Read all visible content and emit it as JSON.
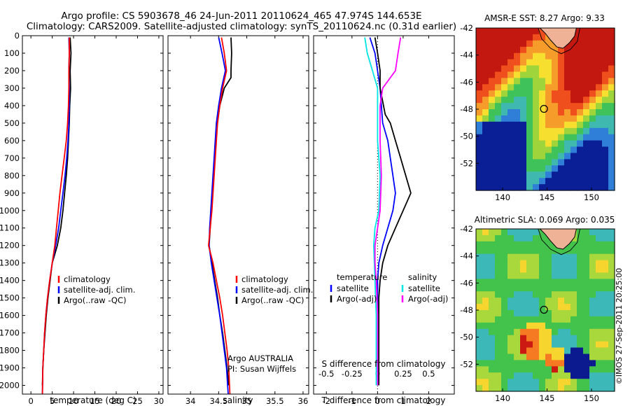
{
  "figure": {
    "title_line1": "Argo profile: CS 5903678_46 24-Jun-2011 20110624_465 47.974S 144.653E",
    "title_line2": "Climatology: CARS2009. Satellite-adjusted climatology: synTS_20110624.nc (0.31d earlier)",
    "credit": "©IMOS 27-Sep-2011 20:25:00"
  },
  "chart_data": [
    {
      "id": "temperature",
      "type": "line",
      "xlabel": "temperature (deg C)",
      "xlim": [
        -2,
        31
      ],
      "xticks": [
        0,
        5,
        10,
        15,
        20,
        25,
        30
      ],
      "ylim": [
        0,
        2050
      ],
      "yticks": [
        0,
        100,
        200,
        300,
        400,
        500,
        600,
        700,
        800,
        900,
        1000,
        1100,
        1200,
        1300,
        1400,
        1500,
        1600,
        1700,
        1800,
        1900,
        2000
      ],
      "legend": [
        "climatology",
        "satellite-adj. clim.",
        "Argo(..raw -QC)"
      ],
      "series": [
        {
          "name": "Argo(..raw -QC)",
          "color": "#000000",
          "points": [
            [
              9.2,
              10
            ],
            [
              9.4,
              100
            ],
            [
              9.2,
              200
            ],
            [
              9.3,
              300
            ],
            [
              9.1,
              400
            ],
            [
              9.0,
              500
            ],
            [
              8.8,
              600
            ],
            [
              8.6,
              700
            ],
            [
              8.3,
              800
            ],
            [
              7.9,
              900
            ],
            [
              7.5,
              1000
            ],
            [
              7.0,
              1100
            ],
            [
              6.2,
              1200
            ],
            [
              5.0,
              1300
            ],
            [
              4.5,
              1400
            ],
            [
              4.0,
              1500
            ],
            [
              3.6,
              1600
            ],
            [
              3.3,
              1700
            ],
            [
              3.0,
              1800
            ],
            [
              2.8,
              1900
            ],
            [
              2.7,
              2000
            ]
          ]
        },
        {
          "name": "satellite-adj. clim.",
          "color": "#0000ff",
          "points": [
            [
              8.9,
              10
            ],
            [
              9.0,
              100
            ],
            [
              8.9,
              200
            ],
            [
              9.0,
              300
            ],
            [
              9.0,
              400
            ],
            [
              8.9,
              500
            ],
            [
              8.7,
              600
            ],
            [
              8.4,
              700
            ],
            [
              8.0,
              800
            ],
            [
              7.5,
              900
            ],
            [
              7.0,
              1000
            ],
            [
              6.5,
              1100
            ],
            [
              5.8,
              1200
            ],
            [
              5.0,
              1300
            ],
            [
              4.4,
              1400
            ],
            [
              3.9,
              1500
            ],
            [
              3.5,
              1600
            ],
            [
              3.2,
              1700
            ],
            [
              3.0,
              1800
            ],
            [
              2.8,
              1900
            ],
            [
              2.7,
              2050
            ]
          ]
        },
        {
          "name": "climatology",
          "color": "#ff0000",
          "points": [
            [
              9.0,
              10
            ],
            [
              9.0,
              100
            ],
            [
              8.9,
              200
            ],
            [
              8.9,
              300
            ],
            [
              8.8,
              400
            ],
            [
              8.6,
              500
            ],
            [
              8.3,
              600
            ],
            [
              7.8,
              700
            ],
            [
              7.3,
              800
            ],
            [
              6.8,
              900
            ],
            [
              6.4,
              1000
            ],
            [
              6.0,
              1100
            ],
            [
              5.6,
              1200
            ],
            [
              5.0,
              1300
            ],
            [
              4.4,
              1400
            ],
            [
              3.9,
              1500
            ],
            [
              3.5,
              1600
            ],
            [
              3.2,
              1700
            ],
            [
              3.0,
              1800
            ],
            [
              2.8,
              1900
            ],
            [
              2.7,
              2050
            ]
          ]
        }
      ]
    },
    {
      "id": "salinity",
      "type": "line",
      "xlabel": "salinity",
      "xlim": [
        33.6,
        36.1
      ],
      "xticks": [
        34,
        34.5,
        35,
        35.5,
        36
      ],
      "ylim": [
        0,
        2050
      ],
      "legend": [
        "climatology",
        "satellite-adj. clim.",
        "Argo(..raw -QC)"
      ],
      "annotation_line1": "Argo AUSTRALIA",
      "annotation_line2": "PI: Susan Wijffels",
      "series": [
        {
          "name": "Argo(..raw -QC)",
          "color": "#000000",
          "points": [
            [
              34.72,
              10
            ],
            [
              34.73,
              100
            ],
            [
              34.72,
              200
            ],
            [
              34.72,
              240
            ],
            [
              34.6,
              300
            ],
            [
              34.52,
              400
            ],
            [
              34.47,
              500
            ],
            [
              34.45,
              600
            ],
            [
              34.43,
              700
            ],
            [
              34.41,
              800
            ],
            [
              34.39,
              900
            ],
            [
              34.37,
              1000
            ],
            [
              34.35,
              1100
            ],
            [
              34.33,
              1200
            ],
            [
              34.38,
              1300
            ],
            [
              34.43,
              1400
            ],
            [
              34.48,
              1500
            ],
            [
              34.52,
              1600
            ],
            [
              34.57,
              1700
            ],
            [
              34.61,
              1800
            ],
            [
              34.65,
              1900
            ],
            [
              34.68,
              2000
            ]
          ]
        },
        {
          "name": "satellite-adj. clim.",
          "color": "#0000ff",
          "points": [
            [
              34.5,
              10
            ],
            [
              34.56,
              100
            ],
            [
              34.62,
              200
            ],
            [
              34.55,
              300
            ],
            [
              34.5,
              400
            ],
            [
              34.46,
              500
            ],
            [
              34.44,
              600
            ],
            [
              34.42,
              700
            ],
            [
              34.4,
              800
            ],
            [
              34.38,
              900
            ],
            [
              34.36,
              1000
            ],
            [
              34.34,
              1100
            ],
            [
              34.33,
              1200
            ],
            [
              34.37,
              1300
            ],
            [
              34.42,
              1400
            ],
            [
              34.47,
              1500
            ],
            [
              34.52,
              1600
            ],
            [
              34.56,
              1700
            ],
            [
              34.6,
              1800
            ],
            [
              34.64,
              1900
            ],
            [
              34.67,
              2050
            ]
          ]
        },
        {
          "name": "climatology",
          "color": "#ff0000",
          "points": [
            [
              34.55,
              10
            ],
            [
              34.6,
              100
            ],
            [
              34.64,
              200
            ],
            [
              34.57,
              300
            ],
            [
              34.52,
              400
            ],
            [
              34.48,
              500
            ],
            [
              34.46,
              600
            ],
            [
              34.44,
              700
            ],
            [
              34.42,
              800
            ],
            [
              34.4,
              900
            ],
            [
              34.38,
              1000
            ],
            [
              34.35,
              1100
            ],
            [
              34.32,
              1200
            ],
            [
              34.4,
              1300
            ],
            [
              34.46,
              1400
            ],
            [
              34.52,
              1500
            ],
            [
              34.57,
              1600
            ],
            [
              34.61,
              1700
            ],
            [
              34.65,
              1800
            ],
            [
              34.68,
              1900
            ],
            [
              34.7,
              2050
            ]
          ]
        }
      ]
    },
    {
      "id": "difference",
      "type": "line",
      "xlabel_bottom": "T difference from climatology",
      "xlabel_top": "S difference from climatology",
      "xlim": [
        -2.5,
        3.0
      ],
      "xticks": [
        -2,
        -1,
        0,
        1,
        2
      ],
      "xticks_top_labels": [
        "-0.5",
        "-0.25",
        "0",
        "0.25",
        "0.5"
      ],
      "xticks_top_positions": [
        -2,
        -1,
        0,
        1,
        2
      ],
      "ylim": [
        0,
        2050
      ],
      "legend_temperature": {
        "header": "temperature",
        "items": [
          "satellite",
          "Argo(-adj)"
        ]
      },
      "legend_salinity": {
        "header": "salinity",
        "items": [
          "satellite",
          "Argo(-adj)"
        ]
      },
      "series": [
        {
          "name": "temperature satellite",
          "color": "#0000ff",
          "points": [
            [
              -0.3,
              10
            ],
            [
              -0.1,
              100
            ],
            [
              0.0,
              200
            ],
            [
              0.1,
              300
            ],
            [
              0.15,
              400
            ],
            [
              0.2,
              500
            ],
            [
              0.4,
              600
            ],
            [
              0.5,
              700
            ],
            [
              0.6,
              800
            ],
            [
              0.7,
              900
            ],
            [
              0.6,
              1000
            ],
            [
              0.4,
              1100
            ],
            [
              0.2,
              1200
            ],
            [
              0.05,
              1300
            ],
            [
              0.0,
              1400
            ],
            [
              0.0,
              1500
            ],
            [
              0.0,
              1600
            ],
            [
              0.0,
              1700
            ],
            [
              0.0,
              1800
            ],
            [
              0.0,
              1900
            ],
            [
              0.0,
              2000
            ]
          ]
        },
        {
          "name": "temperature Argo(-adj)",
          "color": "#000000",
          "points": [
            [
              -0.1,
              10
            ],
            [
              0.0,
              100
            ],
            [
              0.1,
              200
            ],
            [
              0.1,
              300
            ],
            [
              0.3,
              450
            ],
            [
              0.5,
              500
            ],
            [
              0.7,
              600
            ],
            [
              0.9,
              700
            ],
            [
              1.1,
              800
            ],
            [
              1.3,
              900
            ],
            [
              1.0,
              1000
            ],
            [
              0.7,
              1100
            ],
            [
              0.4,
              1200
            ],
            [
              0.2,
              1300
            ],
            [
              0.1,
              1400
            ],
            [
              0.05,
              1500
            ],
            [
              0.05,
              1600
            ],
            [
              0.05,
              1700
            ],
            [
              0.05,
              1800
            ],
            [
              0.05,
              1900
            ],
            [
              0.05,
              2000
            ]
          ]
        },
        {
          "name": "salinity satellite",
          "color": "#00e5e5",
          "points": [
            [
              -0.5,
              10
            ],
            [
              -0.4,
              100
            ],
            [
              -0.2,
              200
            ],
            [
              0.0,
              300
            ],
            [
              0.0,
              400
            ],
            [
              0.0,
              600
            ],
            [
              0.1,
              800
            ],
            [
              0.05,
              1000
            ],
            [
              -0.1,
              1100
            ],
            [
              -0.15,
              1200
            ],
            [
              -0.1,
              1400
            ],
            [
              -0.05,
              1600
            ],
            [
              -0.05,
              1800
            ],
            [
              -0.05,
              2000
            ]
          ]
        },
        {
          "name": "salinity Argo(-adj)",
          "color": "#ff00ff",
          "points": [
            [
              0.9,
              10
            ],
            [
              0.8,
              100
            ],
            [
              0.7,
              200
            ],
            [
              0.2,
              300
            ],
            [
              0.1,
              400
            ],
            [
              0.1,
              600
            ],
            [
              0.15,
              800
            ],
            [
              0.1,
              1000
            ],
            [
              0.0,
              1100
            ],
            [
              -0.1,
              1200
            ],
            [
              -0.1,
              1300
            ],
            [
              -0.05,
              1400
            ],
            [
              0.0,
              1600
            ],
            [
              0.0,
              1800
            ],
            [
              0.0,
              2000
            ]
          ]
        }
      ]
    }
  ],
  "maps": [
    {
      "id": "sst-map",
      "title": "AMSR-E SST: 8.27 Argo: 9.33",
      "xlim": [
        137,
        152.6
      ],
      "ylim": [
        -54,
        -42
      ],
      "xticks": [
        140,
        145,
        150
      ],
      "yticks": [
        -42,
        -44,
        -46,
        -48,
        -50,
        -52
      ],
      "float_lon": 144.653,
      "float_lat": -47.974
    },
    {
      "id": "sla-map",
      "title": "Altimetric SLA: 0.069 Argo: 0.035",
      "xlim": [
        137,
        152.6
      ],
      "ylim": [
        -54,
        -42
      ],
      "xticks": [
        140,
        145,
        150
      ],
      "yticks": [
        -42,
        -44,
        -46,
        -48,
        -50,
        -52
      ],
      "float_lon": 144.653,
      "float_lat": -47.974
    }
  ]
}
